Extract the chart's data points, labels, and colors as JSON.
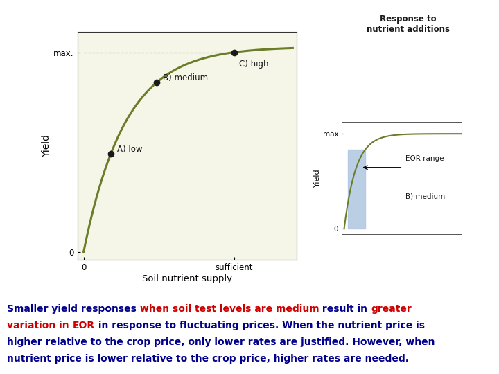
{
  "bg_color": "#fffff0",
  "curve_color": "#6b7c2a",
  "dot_color": "#1a1a1a",
  "label_A": "A) low",
  "label_B": "B) medium",
  "label_C": "C) high",
  "ylabel_main": "Yield",
  "xlabel_main": "Soil nutrient supply",
  "xtick_sufficient": "sufficient",
  "ytick_max": "max.",
  "right_title": "Response to\nnutrient additions",
  "right_ylabel": "Yield",
  "right_ytick_max": "max",
  "right_ytick_0": "0",
  "right_label_EOR": "EOR range",
  "right_label_medium": "B) medium",
  "eor_color": "#aec6e0",
  "right_curve_color": "#6b7c2a",
  "font_size_text": 10.0
}
